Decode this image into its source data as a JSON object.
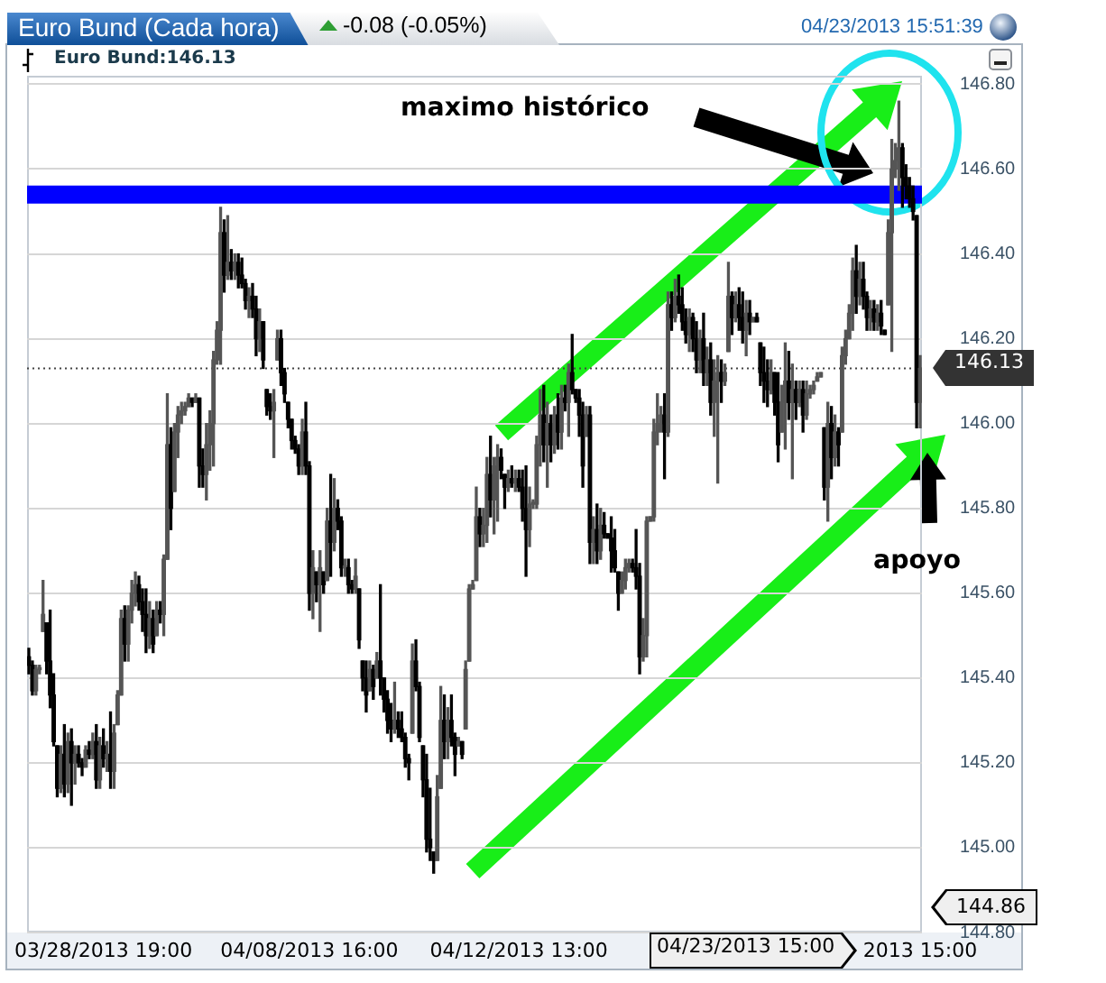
{
  "chart_data": {
    "type": "candlestick",
    "title": "Euro Bund (Cada hora)",
    "subtitle": "-0.08 (-0.05%)",
    "categories": [
      null,
      null,
      null,
      null,
      null,
      null,
      null,
      null,
      null,
      null,
      null,
      null,
      null,
      null,
      null,
      null,
      null,
      null,
      null,
      null,
      null,
      "03/28/2013 19:00",
      null,
      null,
      null,
      null,
      null,
      null,
      null,
      null,
      null,
      null,
      null,
      null,
      null,
      null,
      null,
      null,
      null,
      null,
      null,
      null,
      null,
      null,
      null,
      null,
      null,
      null,
      null,
      null,
      null,
      null,
      null,
      null,
      null,
      null,
      null,
      null,
      null,
      null,
      null,
      null,
      null,
      null,
      null,
      null,
      null,
      null,
      null,
      null,
      null,
      null,
      null,
      null,
      null,
      null,
      null,
      null,
      null,
      "04/08/2013 16:00",
      null,
      null,
      null,
      null,
      null,
      null,
      null,
      null,
      null,
      null,
      null,
      null,
      null,
      null,
      null,
      null,
      null,
      null,
      null,
      null,
      null,
      null,
      null,
      null,
      null,
      null,
      null,
      null,
      null,
      null,
      null,
      null,
      null,
      null,
      null,
      null,
      null,
      null,
      null,
      null,
      null,
      null,
      null,
      null,
      null,
      null,
      null,
      null,
      null,
      null,
      null,
      null,
      null,
      null,
      null,
      null,
      null,
      null,
      "04/12/2013 13:00",
      null,
      null,
      null,
      null,
      null,
      null,
      null,
      null,
      null,
      null,
      null,
      null,
      null,
      null,
      null,
      null,
      null,
      null,
      null,
      null,
      null,
      null,
      null,
      null,
      null,
      null,
      null,
      null,
      null,
      null,
      null,
      null,
      null,
      null,
      null,
      null,
      null,
      null,
      null,
      null,
      null,
      null,
      null,
      null,
      null,
      null,
      null,
      null,
      null,
      null,
      null,
      null,
      null,
      null,
      null,
      null,
      null,
      null,
      null,
      null,
      null,
      null,
      null,
      null,
      null,
      null,
      null,
      null,
      null,
      null,
      null,
      null,
      null,
      null,
      null,
      null,
      null,
      null,
      null,
      null,
      null,
      null,
      null,
      null,
      null,
      null,
      null,
      null,
      null,
      null,
      null,
      null,
      null,
      null,
      null,
      null,
      null,
      null,
      null,
      null,
      null,
      null,
      null,
      null,
      null,
      null,
      null,
      null,
      null,
      null,
      null,
      null,
      "2013 15:00"
    ],
    "ohlc": [
      [
        145.45,
        145.47,
        145.41,
        145.43
      ],
      [
        145.43,
        145.44,
        145.36,
        145.37
      ],
      [
        145.37,
        145.43,
        145.36,
        145.42
      ],
      [
        145.42,
        145.43,
        145.41,
        145.42
      ],
      [
        145.51,
        145.63,
        145.51,
        145.55
      ],
      [
        145.53,
        145.53,
        145.41,
        145.44
      ],
      [
        145.44,
        145.56,
        145.33,
        145.36
      ],
      [
        145.36,
        145.41,
        145.24,
        145.25
      ],
      [
        145.24,
        145.24,
        145.12,
        145.14
      ],
      [
        145.14,
        145.24,
        145.13,
        145.22
      ],
      [
        145.22,
        145.29,
        145.12,
        145.15
      ],
      [
        145.15,
        145.27,
        145.13,
        145.25
      ],
      [
        145.25,
        145.28,
        145.1,
        145.2
      ],
      [
        145.2,
        145.24,
        145.15,
        145.22
      ],
      [
        145.22,
        145.24,
        145.19,
        145.2
      ],
      [
        145.2,
        145.21,
        145.17,
        145.19
      ],
      [
        145.19,
        145.24,
        145.19,
        145.23
      ],
      [
        145.23,
        145.25,
        145.21,
        145.22
      ],
      [
        145.22,
        145.27,
        145.21,
        145.25
      ],
      [
        145.25,
        145.29,
        145.14,
        145.16
      ],
      [
        145.16,
        145.26,
        145.14,
        145.24
      ],
      [
        145.24,
        145.28,
        145.19,
        145.21
      ],
      [
        145.21,
        145.25,
        145.18,
        145.22
      ],
      [
        145.22,
        145.32,
        145.14,
        145.18
      ],
      [
        145.18,
        145.29,
        145.14,
        145.27
      ],
      [
        145.29,
        145.37,
        145.29,
        145.36
      ],
      [
        145.36,
        145.56,
        145.36,
        145.54
      ],
      [
        145.54,
        145.57,
        145.44,
        145.48
      ],
      [
        145.48,
        145.57,
        145.44,
        145.56
      ],
      [
        145.56,
        145.63,
        145.53,
        145.6
      ],
      [
        145.6,
        145.65,
        145.57,
        145.62
      ],
      [
        145.62,
        145.64,
        145.56,
        145.58
      ],
      [
        145.58,
        145.61,
        145.51,
        145.55
      ],
      [
        145.55,
        145.61,
        145.46,
        145.5
      ],
      [
        145.5,
        145.58,
        145.47,
        145.54
      ],
      [
        145.54,
        145.56,
        145.46,
        145.48
      ],
      [
        145.5,
        145.58,
        145.5,
        145.56
      ],
      [
        145.56,
        145.58,
        145.53,
        145.55
      ],
      [
        145.55,
        145.69,
        145.5,
        145.68
      ],
      [
        145.68,
        146.07,
        145.68,
        145.95
      ],
      [
        145.95,
        145.99,
        145.75,
        145.8
      ],
      [
        145.84,
        146.0,
        145.84,
        145.98
      ],
      [
        145.98,
        146.04,
        145.92,
        146.02
      ],
      [
        146.02,
        146.05,
        146.0,
        146.03
      ],
      [
        146.03,
        146.05,
        146.02,
        146.04
      ],
      [
        146.04,
        146.07,
        146.04,
        146.06
      ],
      [
        146.06,
        146.06,
        146.04,
        146.05
      ],
      [
        146.05,
        146.07,
        146.05,
        146.06
      ],
      [
        146.06,
        146.06,
        145.85,
        145.9
      ],
      [
        145.9,
        145.94,
        145.85,
        145.88
      ],
      [
        145.88,
        146.0,
        145.82,
        145.95
      ],
      [
        145.95,
        146.03,
        145.89,
        146.0
      ],
      [
        146.0,
        146.17,
        145.9,
        146.15
      ],
      [
        146.15,
        146.24,
        146.14,
        146.22
      ],
      [
        146.22,
        146.51,
        146.14,
        146.45
      ],
      [
        146.45,
        146.48,
        146.31,
        146.35
      ],
      [
        146.35,
        146.49,
        146.34,
        146.38
      ],
      [
        146.38,
        146.41,
        146.34,
        146.36
      ],
      [
        146.36,
        146.4,
        146.34,
        146.38
      ],
      [
        146.38,
        146.4,
        146.32,
        146.35
      ],
      [
        146.35,
        146.39,
        146.32,
        146.33
      ],
      [
        146.33,
        146.34,
        146.27,
        146.29
      ],
      [
        146.29,
        146.32,
        146.25,
        146.3
      ],
      [
        146.3,
        146.33,
        146.25,
        146.27
      ],
      [
        146.27,
        146.3,
        146.16,
        146.2
      ],
      [
        146.2,
        146.27,
        146.17,
        146.24
      ],
      [
        146.24,
        146.24,
        146.13,
        146.15
      ],
      [
        146.08,
        146.08,
        146.02,
        146.04
      ],
      [
        146.04,
        146.07,
        146.01,
        146.03
      ],
      [
        146.03,
        146.08,
        145.92,
        146.05
      ],
      [
        146.15,
        146.22,
        146.15,
        146.2
      ],
      [
        146.2,
        146.22,
        146.09,
        146.12
      ],
      [
        146.12,
        146.13,
        146.05,
        146.07
      ],
      [
        146.05,
        146.05,
        145.99,
        146.01
      ],
      [
        146.01,
        146.01,
        145.94,
        145.96
      ],
      [
        145.96,
        145.97,
        145.93,
        145.94
      ],
      [
        145.94,
        145.95,
        145.88,
        145.9
      ],
      [
        145.9,
        146.01,
        145.88,
        145.98
      ],
      [
        145.98,
        146.05,
        145.88,
        145.9
      ],
      [
        145.9,
        145.91,
        145.56,
        145.6
      ],
      [
        145.6,
        145.7,
        145.54,
        145.66
      ],
      [
        145.65,
        145.65,
        145.58,
        145.62
      ],
      [
        145.62,
        145.7,
        145.51,
        145.66
      ],
      [
        145.65,
        145.65,
        145.6,
        145.62
      ],
      [
        145.63,
        145.8,
        145.63,
        145.77
      ],
      [
        145.77,
        145.88,
        145.64,
        145.72
      ],
      [
        145.72,
        145.87,
        145.7,
        145.8
      ],
      [
        145.8,
        145.82,
        145.75,
        145.77
      ],
      [
        145.77,
        145.78,
        145.64,
        145.66
      ],
      [
        145.66,
        145.68,
        145.64,
        145.66
      ],
      [
        145.66,
        145.68,
        145.6,
        145.62
      ],
      [
        145.62,
        145.63,
        145.6,
        145.61
      ],
      [
        145.61,
        145.68,
        145.6,
        145.64
      ],
      [
        145.61,
        145.61,
        145.47,
        145.49
      ],
      [
        145.44,
        145.44,
        145.37,
        145.4
      ],
      [
        145.4,
        145.44,
        145.32,
        145.36
      ],
      [
        145.37,
        145.44,
        145.37,
        145.42
      ],
      [
        145.42,
        145.43,
        145.35,
        145.38
      ],
      [
        145.4,
        145.46,
        145.4,
        145.44
      ],
      [
        145.44,
        145.62,
        145.36,
        145.4
      ],
      [
        145.4,
        145.4,
        145.32,
        145.35
      ],
      [
        145.35,
        145.37,
        145.27,
        145.3
      ],
      [
        145.3,
        145.34,
        145.25,
        145.28
      ],
      [
        145.28,
        145.39,
        145.27,
        145.3
      ],
      [
        145.3,
        145.32,
        145.26,
        145.28
      ],
      [
        145.28,
        145.32,
        145.25,
        145.26
      ],
      [
        145.26,
        145.27,
        145.19,
        145.21
      ],
      [
        145.21,
        145.22,
        145.16,
        145.2
      ],
      [
        145.27,
        145.48,
        145.27,
        145.44
      ],
      [
        145.44,
        145.49,
        145.37,
        145.38
      ],
      [
        145.38,
        145.39,
        145.25,
        145.26
      ],
      [
        145.24,
        145.24,
        145.12,
        145.16
      ],
      [
        145.16,
        145.22,
        144.99,
        145.02
      ],
      [
        145.02,
        145.14,
        144.97,
        145.0
      ],
      [
        144.99,
        144.99,
        144.94,
        144.97
      ],
      [
        144.97,
        145.17,
        144.97,
        145.12
      ],
      [
        145.14,
        145.38,
        145.14,
        145.3
      ],
      [
        145.3,
        145.36,
        145.21,
        145.25
      ],
      [
        145.25,
        145.33,
        145.21,
        145.3
      ],
      [
        145.3,
        145.36,
        145.24,
        145.26
      ],
      [
        145.26,
        145.27,
        145.17,
        145.22
      ],
      [
        145.24,
        145.26,
        145.24,
        145.25
      ],
      [
        145.25,
        145.25,
        145.21,
        145.22
      ],
      [
        145.28,
        145.44,
        145.28,
        145.42
      ],
      [
        145.44,
        145.62,
        145.44,
        145.61
      ],
      [
        145.61,
        145.63,
        145.61,
        145.62
      ],
      [
        145.63,
        145.85,
        145.63,
        145.78
      ],
      [
        145.78,
        145.8,
        145.71,
        145.74
      ],
      [
        145.74,
        145.8,
        145.71,
        145.76
      ],
      [
        145.76,
        145.92,
        145.72,
        145.88
      ],
      [
        145.88,
        145.97,
        145.78,
        145.82
      ],
      [
        145.82,
        145.92,
        145.74,
        145.9
      ],
      [
        145.9,
        145.95,
        145.77,
        145.92
      ],
      [
        145.92,
        145.94,
        145.87,
        145.89
      ],
      [
        145.88,
        145.88,
        145.8,
        145.85
      ],
      [
        145.85,
        145.89,
        145.84,
        145.87
      ],
      [
        145.87,
        145.9,
        145.85,
        145.86
      ],
      [
        145.86,
        145.89,
        145.84,
        145.87
      ],
      [
        145.87,
        145.89,
        145.84,
        145.85
      ],
      [
        145.85,
        145.89,
        145.77,
        145.8
      ],
      [
        145.8,
        145.9,
        145.64,
        145.75
      ],
      [
        145.75,
        145.85,
        145.71,
        145.81
      ],
      [
        145.81,
        145.82,
        145.8,
        145.81
      ],
      [
        145.81,
        145.97,
        145.8,
        145.95
      ],
      [
        145.95,
        146.08,
        145.9,
        146.02
      ],
      [
        146.02,
        146.09,
        145.91,
        145.95
      ],
      [
        145.95,
        146.05,
        145.85,
        146.0
      ],
      [
        146.0,
        146.02,
        145.91,
        145.95
      ],
      [
        145.95,
        146.04,
        145.93,
        146.02
      ],
      [
        146.02,
        146.07,
        145.94,
        145.98
      ],
      [
        145.98,
        146.09,
        145.94,
        146.06
      ],
      [
        146.06,
        146.09,
        146.03,
        146.05
      ],
      [
        146.05,
        146.14,
        145.97,
        146.12
      ],
      [
        146.12,
        146.21,
        146.07,
        146.08
      ],
      [
        146.08,
        146.08,
        146.05,
        146.06
      ],
      [
        146.06,
        146.08,
        145.97,
        146.02
      ],
      [
        146.02,
        146.05,
        145.85,
        145.9
      ],
      [
        145.97,
        146.04,
        145.97,
        146.02
      ],
      [
        146.02,
        146.04,
        145.67,
        145.72
      ],
      [
        145.72,
        145.78,
        145.67,
        145.75
      ],
      [
        145.75,
        145.81,
        145.67,
        145.7
      ],
      [
        145.7,
        145.8,
        145.68,
        145.76
      ],
      [
        145.76,
        145.79,
        145.73,
        145.74
      ],
      [
        145.74,
        145.74,
        145.73,
        145.73
      ],
      [
        145.73,
        145.78,
        145.65,
        145.7
      ],
      [
        145.7,
        145.75,
        145.65,
        145.66
      ],
      [
        145.65,
        145.65,
        145.56,
        145.6
      ],
      [
        145.6,
        145.65,
        145.6,
        145.63
      ],
      [
        145.63,
        145.68,
        145.61,
        145.66
      ],
      [
        145.66,
        145.68,
        145.65,
        145.67
      ],
      [
        145.67,
        145.68,
        145.65,
        145.66
      ],
      [
        145.66,
        145.75,
        145.61,
        145.64
      ],
      [
        145.64,
        145.67,
        145.41,
        145.45
      ],
      [
        145.45,
        145.54,
        145.44,
        145.5
      ],
      [
        145.5,
        145.78,
        145.45,
        145.77
      ],
      [
        145.77,
        145.78,
        145.77,
        145.78
      ],
      [
        145.78,
        146.01,
        145.77,
        145.98
      ],
      [
        145.98,
        146.07,
        145.95,
        146.0
      ],
      [
        146.0,
        146.04,
        145.98,
        146.02
      ],
      [
        146.02,
        146.07,
        145.87,
        145.98
      ],
      [
        145.98,
        146.31,
        145.97,
        146.28
      ],
      [
        146.28,
        146.31,
        146.22,
        146.25
      ],
      [
        146.25,
        146.34,
        146.24,
        146.3
      ],
      [
        146.3,
        146.35,
        146.26,
        146.28
      ],
      [
        146.28,
        146.32,
        146.22,
        146.24
      ],
      [
        146.24,
        146.27,
        146.19,
        146.21
      ],
      [
        146.21,
        146.27,
        146.17,
        146.25
      ],
      [
        146.25,
        146.26,
        146.17,
        146.2
      ],
      [
        146.2,
        146.24,
        146.12,
        146.15
      ],
      [
        146.15,
        146.22,
        146.12,
        146.2
      ],
      [
        146.2,
        146.26,
        146.09,
        146.12
      ],
      [
        146.12,
        146.18,
        146.09,
        146.15
      ],
      [
        146.15,
        146.19,
        146.02,
        146.05
      ],
      [
        146.05,
        146.15,
        145.97,
        146.1
      ],
      [
        146.1,
        146.16,
        145.86,
        146.12
      ],
      [
        146.12,
        146.15,
        146.05,
        146.1
      ],
      [
        146.1,
        146.14,
        146.09,
        146.12
      ],
      [
        146.17,
        146.38,
        146.17,
        146.3
      ],
      [
        146.3,
        146.31,
        146.21,
        146.25
      ],
      [
        146.25,
        146.31,
        146.24,
        146.28
      ],
      [
        146.28,
        146.32,
        146.22,
        146.25
      ],
      [
        146.25,
        146.31,
        146.19,
        146.22
      ],
      [
        146.22,
        146.29,
        146.16,
        146.26
      ],
      [
        146.26,
        146.29,
        146.21,
        146.24
      ],
      [
        146.24,
        146.25,
        146.24,
        146.25
      ],
      [
        146.25,
        146.26,
        146.24,
        146.24
      ],
      [
        146.19,
        146.19,
        146.09,
        146.12
      ],
      [
        146.12,
        146.18,
        146.05,
        146.1
      ],
      [
        146.1,
        146.15,
        146.04,
        146.08
      ],
      [
        146.08,
        146.15,
        146.07,
        146.12
      ],
      [
        146.12,
        146.12,
        146.02,
        146.05
      ],
      [
        146.05,
        146.12,
        145.91,
        145.95
      ],
      [
        145.98,
        146.09,
        145.98,
        146.05
      ],
      [
        146.05,
        146.19,
        145.94,
        146.1
      ],
      [
        146.1,
        146.17,
        146.01,
        146.05
      ],
      [
        146.05,
        146.14,
        145.87,
        146.08
      ],
      [
        146.08,
        146.1,
        146.01,
        146.05
      ],
      [
        146.05,
        146.1,
        146.04,
        146.08
      ],
      [
        146.08,
        146.1,
        145.98,
        146.02
      ],
      [
        146.02,
        146.1,
        146.01,
        146.07
      ],
      [
        146.07,
        146.09,
        146.06,
        146.08
      ],
      [
        146.08,
        146.1,
        146.07,
        146.09
      ],
      [
        146.1,
        146.12,
        146.1,
        146.11
      ],
      [
        146.11,
        146.12,
        146.11,
        146.12
      ],
      [
        145.99,
        145.99,
        145.82,
        145.85
      ],
      [
        145.85,
        146.05,
        145.77,
        146.0
      ],
      [
        146.0,
        146.04,
        145.87,
        145.92
      ],
      [
        145.92,
        146.02,
        145.9,
        145.98
      ],
      [
        145.98,
        145.99,
        145.9,
        145.95
      ],
      [
        145.98,
        146.18,
        145.98,
        146.16
      ],
      [
        146.16,
        146.22,
        146.14,
        146.2
      ],
      [
        146.2,
        146.28,
        146.2,
        146.26
      ],
      [
        146.26,
        146.39,
        146.22,
        146.36
      ],
      [
        146.36,
        146.42,
        146.26,
        146.3
      ],
      [
        146.3,
        146.38,
        146.28,
        146.34
      ],
      [
        146.34,
        146.38,
        146.27,
        146.3
      ],
      [
        146.3,
        146.31,
        146.22,
        146.25
      ],
      [
        146.25,
        146.29,
        146.22,
        146.27
      ],
      [
        146.27,
        146.29,
        146.22,
        146.24
      ],
      [
        146.24,
        146.28,
        146.22,
        146.26
      ],
      [
        146.26,
        146.29,
        146.21,
        146.23
      ],
      [
        146.22,
        146.22,
        146.21,
        146.21
      ],
      [
        146.28,
        146.48,
        146.28,
        146.45
      ],
      [
        146.45,
        146.67,
        146.17,
        146.6
      ],
      [
        146.6,
        146.66,
        146.58,
        146.62
      ],
      [
        146.62,
        146.76,
        146.55,
        146.65
      ],
      [
        146.65,
        146.66,
        146.51,
        146.58
      ],
      [
        146.58,
        146.61,
        146.53,
        146.56
      ],
      [
        146.56,
        146.58,
        146.51,
        146.53
      ],
      [
        146.53,
        146.56,
        146.48,
        146.5
      ],
      [
        146.49,
        146.49,
        145.99,
        146.05
      ],
      [
        146.05,
        146.16,
        145.99,
        146.13
      ]
    ],
    "colors": [
      "#000000",
      "#000000",
      "#555555",
      "#555555",
      "#555555",
      "#000000",
      "#000000",
      "#000000",
      "#000000",
      "#555555",
      "#000000",
      "#555555",
      "#000000",
      "#555555",
      "#000000",
      "#000000",
      "#555555",
      "#000000",
      "#555555",
      "#000000",
      "#555555",
      "#000000",
      "#555555",
      "#000000",
      "#555555",
      "#555555",
      "#555555",
      "#000000",
      "#555555",
      "#555555",
      "#555555",
      "#000000",
      "#000000",
      "#000000",
      "#555555",
      "#000000",
      "#555555",
      "#000000",
      "#555555",
      "#555555",
      "#000000",
      "#555555",
      "#555555",
      "#555555",
      "#555555",
      "#555555",
      "#000000",
      "#555555",
      "#000000",
      "#000000",
      "#555555",
      "#555555",
      "#555555",
      "#555555",
      "#555555",
      "#000000",
      "#555555",
      "#000000",
      "#555555",
      "#000000",
      "#000000",
      "#000000",
      "#555555",
      "#000000",
      "#000000",
      "#555555",
      "#000000",
      "#000000",
      "#000000",
      "#555555",
      "#555555",
      "#000000",
      "#000000",
      "#000000",
      "#000000",
      "#000000",
      "#000000",
      "#555555",
      "#000000",
      "#000000",
      "#555555",
      "#000000",
      "#555555",
      "#000000",
      "#555555",
      "#000000",
      "#555555",
      "#000000",
      "#000000",
      "#555555",
      "#000000",
      "#000000",
      "#555555",
      "#000000",
      "#000000",
      "#000000",
      "#555555",
      "#000000",
      "#555555",
      "#000000",
      "#000000",
      "#000000",
      "#000000",
      "#555555",
      "#000000",
      "#000000",
      "#000000",
      "#000000",
      "#555555",
      "#000000",
      "#000000",
      "#000000",
      "#000000",
      "#000000",
      "#000000",
      "#555555",
      "#555555",
      "#000000",
      "#555555",
      "#000000",
      "#000000",
      "#555555",
      "#000000",
      "#555555",
      "#555555",
      "#555555",
      "#555555",
      "#000000",
      "#555555",
      "#555555",
      "#000000",
      "#555555",
      "#555555",
      "#000000",
      "#000000",
      "#555555",
      "#000000",
      "#555555",
      "#000000",
      "#000000",
      "#000000",
      "#555555",
      "#555555",
      "#555555",
      "#555555",
      "#000000",
      "#555555",
      "#000000",
      "#555555",
      "#000000",
      "#555555",
      "#000000",
      "#555555",
      "#000000",
      "#000000",
      "#000000",
      "#000000",
      "#555555",
      "#000000",
      "#555555",
      "#000000",
      "#555555",
      "#000000",
      "#000000",
      "#000000",
      "#000000",
      "#000000",
      "#555555",
      "#555555",
      "#555555",
      "#000000",
      "#000000",
      "#000000",
      "#555555",
      "#555555",
      "#555555",
      "#555555",
      "#555555",
      "#555555",
      "#000000",
      "#555555",
      "#000000",
      "#555555",
      "#000000",
      "#000000",
      "#000000",
      "#555555",
      "#000000",
      "#000000",
      "#555555",
      "#000000",
      "#555555",
      "#000000",
      "#555555",
      "#555555",
      "#000000",
      "#555555",
      "#555555",
      "#000000",
      "#555555",
      "#000000",
      "#000000",
      "#555555",
      "#000000",
      "#555555",
      "#000000",
      "#000000",
      "#000000",
      "#000000",
      "#555555",
      "#000000",
      "#000000",
      "#555555",
      "#555555",
      "#000000",
      "#555555",
      "#000000",
      "#555555",
      "#000000",
      "#555555",
      "#555555",
      "#555555",
      "#555555",
      "#555555",
      "#000000",
      "#555555",
      "#000000",
      "#555555",
      "#000000",
      "#555555",
      "#555555",
      "#555555",
      "#555555",
      "#000000",
      "#555555",
      "#000000",
      "#000000",
      "#555555",
      "#000000",
      "#555555",
      "#000000",
      "#000000",
      "#555555",
      "#555555",
      "#555555",
      "#555555",
      "#000000",
      "#000000",
      "#000000",
      "#000000",
      "#000000",
      "#555555"
    ],
    "ylim": [
      144.8,
      146.82
    ],
    "yticks": [
      {
        "value": 144.8,
        "label": "144.80"
      },
      {
        "value": 145,
        "label": "145.00"
      },
      {
        "value": 145.2,
        "label": "145.20"
      },
      {
        "value": 145.4,
        "label": "145.40"
      },
      {
        "value": 145.6,
        "label": "145.60"
      },
      {
        "value": 145.8,
        "label": "145.80"
      },
      {
        "value": 146,
        "label": "146.00"
      },
      {
        "value": 146.2,
        "label": "146.20"
      },
      {
        "value": 146.4,
        "label": "146.40"
      },
      {
        "value": 146.6,
        "label": "146.60"
      },
      {
        "value": 146.8,
        "label": "146.80"
      }
    ],
    "grid": "y",
    "ref_lines": [
      {
        "axis": "y",
        "value": 146.54,
        "color": "#0000ff"
      },
      {
        "axis": "y",
        "value": 146.13,
        "label": "146.13",
        "color": "#444444",
        "line_style": "dotted"
      }
    ],
    "annotations": [
      "Euro Bund:146.13",
      "04/23/2013 15:51:39",
      "maximo histórico",
      "apoyo",
      "04/23/2013 15:00",
      "144.86"
    ]
  }
}
